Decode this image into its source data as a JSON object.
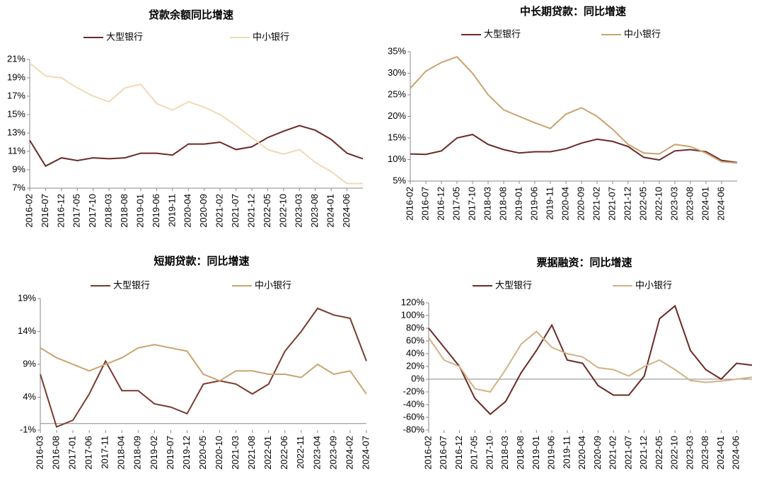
{
  "chart_data": [
    {
      "type": "line",
      "title": "贷款余额同比增速",
      "categories": [
        "2016-02",
        "2016-07",
        "2016-12",
        "2017-05",
        "2017-10",
        "2018-03",
        "2018-08",
        "2019-01",
        "2019-06",
        "2019-11",
        "2020-04",
        "2020-09",
        "2021-02",
        "2021-07",
        "2021-12",
        "2022-05",
        "2022-10",
        "2023-03",
        "2023-08",
        "2024-01",
        "2024-06",
        null
      ],
      "series": [
        {
          "name": "大型银行",
          "color": "#6b2a26",
          "values": [
            12.2,
            9.4,
            10.3,
            10.0,
            10.3,
            10.2,
            10.3,
            10.8,
            10.8,
            10.6,
            11.8,
            11.8,
            12.0,
            11.2,
            11.5,
            12.5,
            13.2,
            13.8,
            13.3,
            12.3,
            10.8,
            10.2
          ]
        },
        {
          "name": "中小银行",
          "color": "#f0d9b5",
          "values": [
            20.6,
            19.2,
            19.0,
            17.9,
            17.0,
            16.4,
            17.9,
            18.3,
            16.2,
            15.5,
            16.4,
            15.8,
            15.0,
            13.8,
            12.5,
            11.2,
            10.7,
            11.2,
            9.8,
            8.8,
            7.5,
            7.5
          ]
        }
      ],
      "ylim": [
        7,
        21
      ],
      "yticks": [
        {
          "value": 7,
          "label": "7%"
        },
        {
          "value": 9,
          "label": "9%"
        },
        {
          "value": 11,
          "label": "11%"
        },
        {
          "value": 13,
          "label": "13%"
        },
        {
          "value": 15,
          "label": "15%"
        },
        {
          "value": 17,
          "label": "17%"
        },
        {
          "value": 19,
          "label": "19%"
        },
        {
          "value": 21,
          "label": "21%"
        }
      ],
      "legend": "top"
    },
    {
      "type": "line",
      "title": "中长期贷款：同比增速",
      "categories": [
        "2016-02",
        "2016-07",
        "2016-12",
        "2017-05",
        "2017-10",
        "2018-03",
        "2018-08",
        "2019-01",
        "2019-06",
        "2019-11",
        "2020-04",
        "2020-09",
        "2021-02",
        "2021-07",
        "2021-12",
        "2022-05",
        "2022-10",
        "2023-03",
        "2023-08",
        "2024-01",
        "2024-06",
        null
      ],
      "series": [
        {
          "name": "大型银行",
          "color": "#6b2a26",
          "values": [
            11.3,
            11.2,
            12.0,
            15.0,
            15.8,
            13.5,
            12.3,
            11.5,
            11.8,
            11.8,
            12.5,
            13.8,
            14.7,
            14.2,
            13.0,
            10.5,
            9.9,
            12.0,
            12.3,
            11.8,
            9.8,
            9.3
          ]
        },
        {
          "name": "中小银行",
          "color": "#c9a36e",
          "values": [
            26.5,
            30.5,
            32.5,
            33.8,
            30.0,
            25.0,
            21.5,
            20.0,
            18.5,
            17.2,
            20.5,
            22.0,
            20.0,
            17.0,
            13.5,
            11.5,
            11.3,
            13.5,
            13.0,
            11.5,
            9.5,
            9.2
          ]
        }
      ],
      "ylim": [
        5,
        35
      ],
      "yticks": [
        {
          "value": 5,
          "label": "5%"
        },
        {
          "value": 10,
          "label": "10%"
        },
        {
          "value": 15,
          "label": "15%"
        },
        {
          "value": 20,
          "label": "20%"
        },
        {
          "value": 25,
          "label": "25%"
        },
        {
          "value": 30,
          "label": "30%"
        },
        {
          "value": 35,
          "label": "35%"
        }
      ],
      "legend": "top"
    },
    {
      "type": "line",
      "title": "短期贷款：同比增速",
      "categories": [
        "2016-03",
        "2016-08",
        "2017-01",
        "2017-06",
        "2017-11",
        "2018-04",
        "2018-09",
        "2019-02",
        "2019-07",
        "2019-12",
        "2020-05",
        "2020-10",
        "2021-03",
        "2021-08",
        "2022-01",
        "2022-06",
        "2022-11",
        "2023-04",
        "2023-09",
        "2024-02",
        "2024-07"
      ],
      "series": [
        {
          "name": "大型银行",
          "color": "#7a3a2e",
          "values": [
            7.5,
            -0.5,
            0.5,
            4.5,
            9.5,
            5.0,
            5.0,
            3.0,
            2.5,
            1.5,
            6.0,
            6.5,
            6.0,
            4.5,
            6.0,
            11.0,
            14.0,
            17.5,
            16.5,
            16.0,
            9.5
          ]
        },
        {
          "name": "中小银行",
          "color": "#c9a36e",
          "values": [
            11.5,
            10.0,
            9.0,
            8.0,
            9.0,
            10.0,
            11.5,
            12.0,
            11.5,
            11.0,
            7.5,
            6.5,
            8.0,
            8.0,
            7.5,
            7.5,
            7.0,
            9.0,
            7.5,
            8.0,
            4.5
          ]
        }
      ],
      "ylim": [
        -1,
        19
      ],
      "yticks": [
        {
          "value": -1,
          "label": "-1%"
        },
        {
          "value": 4,
          "label": "4%"
        },
        {
          "value": 9,
          "label": "9%"
        },
        {
          "value": 14,
          "label": "14%"
        },
        {
          "value": 19,
          "label": "19%"
        }
      ],
      "legend": "top"
    },
    {
      "type": "line",
      "title": "票据融资：同比增速",
      "categories": [
        "2016-02",
        "2016-07",
        "2016-12",
        "2017-05",
        "2017-10",
        "2018-03",
        "2018-08",
        "2019-01",
        "2019-06",
        "2019-11",
        "2020-04",
        "2020-09",
        "2021-02",
        "2021-07",
        "2021-12",
        "2022-05",
        "2022-10",
        "2023-03",
        "2023-08",
        "2024-01",
        "2024-06",
        null
      ],
      "series": [
        {
          "name": "大型银行",
          "color": "#6b2a26",
          "values": [
            80,
            50,
            20,
            -30,
            -55,
            -35,
            10,
            45,
            85,
            30,
            25,
            -10,
            -25,
            -25,
            5,
            95,
            115,
            45,
            15,
            0,
            25,
            22
          ]
        },
        {
          "name": "中小银行",
          "color": "#d2b284",
          "values": [
            65,
            30,
            20,
            -15,
            -20,
            15,
            55,
            75,
            50,
            40,
            35,
            18,
            15,
            5,
            20,
            30,
            15,
            -2,
            -5,
            -3,
            0,
            3
          ]
        }
      ],
      "ylim": [
        -80,
        120
      ],
      "yticks": [
        {
          "value": -80,
          "label": "-80%"
        },
        {
          "value": -60,
          "label": "-60%"
        },
        {
          "value": -40,
          "label": "-40%"
        },
        {
          "value": -20,
          "label": "-20%"
        },
        {
          "value": 0,
          "label": "0%"
        },
        {
          "value": 20,
          "label": "20%"
        },
        {
          "value": 40,
          "label": "40%"
        },
        {
          "value": 60,
          "label": "60%"
        },
        {
          "value": 80,
          "label": "80%"
        },
        {
          "value": 100,
          "label": "100%"
        },
        {
          "value": 120,
          "label": "120%"
        }
      ],
      "legend": "top"
    }
  ]
}
